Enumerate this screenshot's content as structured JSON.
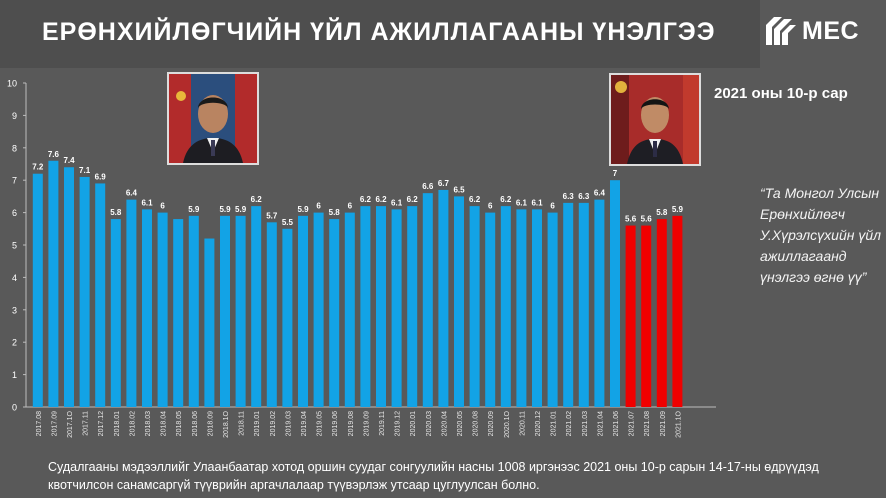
{
  "title": "ЕРӨНХИЙЛӨГЧИЙН ҮЙЛ АЖИЛЛАГААНЫ ҮНЭЛГЭЭ",
  "logo_text": "MEC",
  "period_label": "2021 оны 10-р сар",
  "quote": "“Та Монгол Улсын Ерөнхийлөгч У.Хүрэлсүхийн үйл ажиллагаанд үнэлгээ өгнө үү”",
  "footnote": "Судалгааны мэдээллийг Улаанбаатар хотод оршин суудаг сонгуулийн насны 1008 иргэнээс 2021 оны 10-р сарын 14-17-ны өдрүүдэд квотчилсон санамсаргүй түүврийн аргачлалаар түүвэрлэж утсаар цуглуулсан болно.",
  "colors": {
    "background": "#595959",
    "bar_blue": "#12a3e6",
    "bar_red": "#f00000"
  },
  "chart_data": {
    "type": "bar",
    "title": "",
    "xlabel": "",
    "ylabel": "",
    "ylim": [
      0,
      10
    ],
    "yticks": [
      0,
      1,
      2,
      3,
      4,
      5,
      6,
      7,
      8,
      9,
      10
    ],
    "grid": false,
    "categories": [
      "2017.08",
      "2017.09",
      "2017.10",
      "2017.11",
      "2017.12",
      "2018.01",
      "2018.02",
      "2018.03",
      "2018.04",
      "2018.05",
      "2018.06",
      "2018.09",
      "2018.10",
      "2018.11",
      "2019.01",
      "2019.02",
      "2019.03",
      "2019.04",
      "2019.05",
      "2019.06",
      "2019.08",
      "2019.09",
      "2019.11",
      "2019.12",
      "2020.01",
      "2020.03",
      "2020.04",
      "2020.05",
      "2020.08",
      "2020.09",
      "2020.10",
      "2020.11",
      "2020.12",
      "2021.01",
      "2021.02",
      "2021.03",
      "2021.04",
      "2021.06",
      "2021.07",
      "2021.08",
      "2021.09",
      "2021.10"
    ],
    "tick_labels": [
      "2017.08",
      "2017.09",
      "2017.1O",
      "2017.11",
      "2017.12",
      "2018.01",
      "2018.02",
      "2018.03",
      "2018.04",
      "2018.05",
      "2018.06",
      "2018.09",
      "2018.1O",
      "2018.11",
      "2019.01",
      "2019.02",
      "2019.03",
      "2019.04",
      "2019.05",
      "2019.06",
      "2019.08",
      "2019.09",
      "2019.11",
      "2019.12",
      "2020.01",
      "2020.03",
      "2020.04",
      "2020.05",
      "2020.08",
      "2020.09",
      "2020.1O",
      "2020.11",
      "2020.12",
      "2021.01",
      "2021.02",
      "2021.03",
      "2021.04",
      "2021.06",
      "2021.07",
      "2021.08",
      "2021.09",
      "2021.1O"
    ],
    "values": [
      7.2,
      7.6,
      7.4,
      7.1,
      6.9,
      5.8,
      6.4,
      6.1,
      6,
      5.8,
      5.9,
      5.2,
      5.9,
      5.9,
      6.2,
      5.7,
      5.5,
      5.9,
      6,
      5.8,
      6,
      6.2,
      6.2,
      6.1,
      6.2,
      6.6,
      6.7,
      6.5,
      6.2,
      6,
      6.2,
      6.1,
      6.1,
      6,
      6.3,
      6.3,
      6.4,
      7,
      5.6,
      5.6,
      5.8,
      5.9
    ],
    "value_labels": [
      "7.2",
      "7.6",
      "7.4",
      "7.1",
      "6.9",
      "5.8",
      "6.4",
      "6.1",
      "6",
      "",
      "5.9",
      "",
      "5.9",
      "5.9",
      "6.2",
      "5.7",
      "5.5",
      "5.9",
      "6",
      "5.8",
      "6",
      "6.2",
      "6.2",
      "6.1",
      "6.2",
      "6.6",
      "6.7",
      "6.5",
      "6.2",
      "6",
      "6.2",
      "6.1",
      "6.1",
      "6",
      "6.3",
      "6.3",
      "6.4",
      "7",
      "5.6",
      "5.6",
      "5.8",
      "5.9"
    ],
    "red_from_index": 38
  }
}
